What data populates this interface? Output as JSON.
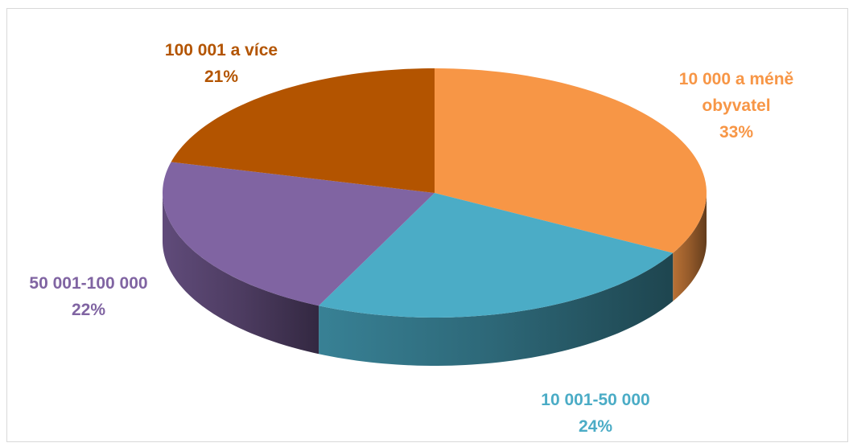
{
  "chart_data": {
    "type": "pie",
    "is_3d": true,
    "categories": [
      "10 000 a méně obyvatel",
      "10 001-50 000",
      "50 001-100 000",
      "100 001 a více"
    ],
    "values": [
      33,
      24,
      22,
      21
    ],
    "value_labels": [
      "33%",
      "24%",
      "22%",
      "21%"
    ],
    "colors": [
      "#f79646",
      "#4bacc6",
      "#8064a2",
      "#b35400"
    ]
  }
}
